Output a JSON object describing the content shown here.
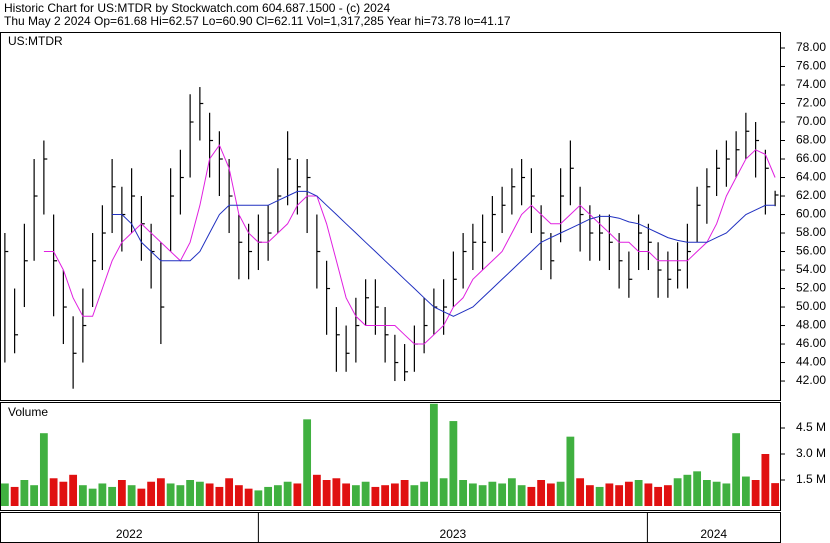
{
  "header": {
    "line1": "Historic Chart for US:MTDR by Stockwatch.com 604.687.1500 - (c) 2024",
    "line2": "Thu May  2 2024  Op=61.68  Hi=62.57  Lo=60.90  Cl=62.11  Vol=1,317,285  Year hi=73.78  lo=41.17"
  },
  "x_axis": {
    "xlim": [
      -0.5,
      79.5
    ],
    "periods": [
      {
        "label": "2022",
        "start": -0.5,
        "end": 26.0
      },
      {
        "label": "2023",
        "start": 26.0,
        "end": 65.9
      },
      {
        "label": "2024",
        "start": 65.9,
        "end": 79.5
      }
    ]
  },
  "chart_data": [
    {
      "type": "ohlc",
      "title": "US:MTDR",
      "color": "#000000",
      "ylim": [
        39.95,
        79.73
      ],
      "yticks": [
        {
          "value": 42,
          "label": "42.00"
        },
        {
          "value": 44,
          "label": "44.00"
        },
        {
          "value": 46,
          "label": "46.00"
        },
        {
          "value": 48,
          "label": "48.00"
        },
        {
          "value": 50,
          "label": "50.00"
        },
        {
          "value": 52,
          "label": "52.00"
        },
        {
          "value": 54,
          "label": "54.00"
        },
        {
          "value": 56,
          "label": "56.00"
        },
        {
          "value": 58,
          "label": "58.00"
        },
        {
          "value": 60,
          "label": "60.00"
        },
        {
          "value": 62,
          "label": "62.00"
        },
        {
          "value": 64,
          "label": "64.00"
        },
        {
          "value": 66,
          "label": "66.00"
        },
        {
          "value": 68,
          "label": "68.00"
        },
        {
          "value": 70,
          "label": "70.00"
        },
        {
          "value": 72,
          "label": "72.00"
        },
        {
          "value": 74,
          "label": "74.00"
        },
        {
          "value": 76,
          "label": "76.00"
        },
        {
          "value": 78,
          "label": "78.00"
        }
      ],
      "high": [
        58,
        52,
        59,
        66,
        68,
        60,
        54,
        49,
        52,
        58,
        61,
        66,
        63,
        65,
        62,
        59,
        57,
        65,
        67,
        73,
        73.78,
        71,
        69,
        66,
        60,
        59,
        60,
        61,
        65,
        69,
        66,
        66,
        60,
        55,
        50,
        48,
        51,
        53,
        53,
        50,
        47,
        46,
        48,
        51,
        52,
        53,
        56,
        58,
        59,
        60,
        62,
        63,
        65,
        66,
        65,
        61,
        58,
        65,
        68,
        63,
        61,
        60,
        60,
        58,
        56,
        60,
        59,
        57,
        56,
        57,
        59,
        63,
        65,
        67,
        68,
        69,
        71,
        70,
        67,
        62.57
      ],
      "low": [
        44,
        45,
        50,
        55,
        60,
        49,
        46,
        41.17,
        44,
        50,
        54,
        58,
        56,
        58,
        55,
        52,
        46,
        56,
        60,
        64,
        68,
        64,
        62,
        58,
        53,
        53,
        54,
        55,
        58,
        61,
        60,
        58,
        52,
        47,
        43,
        43,
        44,
        48,
        47,
        44,
        42,
        42,
        43,
        45,
        47,
        47,
        50,
        52,
        54,
        54,
        56,
        58,
        60,
        61,
        58,
        54,
        53,
        57,
        61,
        56,
        55,
        55,
        54,
        52,
        51,
        54,
        54,
        51,
        51,
        52,
        52,
        57,
        59,
        62,
        63,
        64,
        66,
        64,
        60,
        60.9
      ],
      "close": [
        56,
        47,
        55,
        62,
        66,
        55,
        50,
        45,
        48,
        55,
        58,
        63,
        60,
        62,
        59,
        56,
        50,
        62,
        64,
        70,
        72,
        68,
        66,
        62,
        57,
        56,
        57,
        58,
        62,
        66,
        63,
        64,
        56,
        52,
        47,
        45,
        48,
        51,
        50,
        47,
        44,
        43,
        46,
        48,
        50,
        50,
        53,
        56,
        57,
        57,
        60,
        61,
        63,
        64,
        62,
        58,
        55,
        62,
        65,
        60,
        58,
        58,
        57,
        55,
        53,
        58,
        57,
        54,
        53,
        54,
        56,
        61,
        63,
        65,
        66,
        67,
        69,
        68,
        65,
        62.11
      ],
      "ma_lines": [
        {
          "color": "#e020e0",
          "values": [
            null,
            null,
            null,
            null,
            56,
            56,
            54,
            51,
            49,
            49,
            52,
            55,
            57,
            58,
            59,
            58,
            57,
            56,
            55,
            57,
            61,
            66,
            67.5,
            65,
            60,
            58,
            57,
            57,
            58,
            59,
            61,
            62,
            62,
            59,
            55,
            51,
            49,
            48,
            48,
            48,
            48,
            47,
            46,
            46,
            47,
            48,
            50,
            51,
            53,
            54,
            55,
            56,
            58,
            60,
            61,
            60,
            59,
            59,
            60,
            61,
            60,
            59,
            58,
            57,
            57,
            56,
            56,
            55,
            55,
            55,
            55,
            56,
            57,
            59,
            62,
            64,
            66,
            67,
            66.5,
            64
          ]
        },
        {
          "color": "#2030c0",
          "values": [
            null,
            null,
            null,
            null,
            null,
            null,
            null,
            null,
            null,
            null,
            null,
            60,
            60,
            59,
            57,
            56,
            55,
            55,
            55,
            55,
            56,
            58,
            60,
            61,
            61,
            61,
            61,
            61,
            61.5,
            62,
            62.5,
            62.5,
            62,
            61,
            60,
            59,
            58,
            57,
            56,
            55,
            54,
            53,
            52,
            51,
            50,
            49.5,
            49,
            49.5,
            50,
            51,
            52,
            53,
            54,
            55,
            56,
            57,
            57.5,
            58,
            58.5,
            59,
            59.5,
            59.8,
            59.8,
            59.6,
            59.2,
            59,
            58.5,
            58,
            57.5,
            57.2,
            57,
            57,
            57,
            57.5,
            58,
            59,
            60,
            60.5,
            61,
            61
          ]
        }
      ]
    },
    {
      "type": "volume",
      "title": "Volume",
      "up_color": "#40b040",
      "down_color": "#e01010",
      "ylim": [
        0,
        6.0
      ],
      "yticks": [
        {
          "value": 1.5,
          "label": "1.5 M"
        },
        {
          "value": 3.0,
          "label": "3.0 M"
        },
        {
          "value": 4.5,
          "label": "4.5 M"
        }
      ],
      "values": [
        1.3,
        1.1,
        1.5,
        1.2,
        4.2,
        1.6,
        1.4,
        1.8,
        1.2,
        1.0,
        1.3,
        1.1,
        1.5,
        1.2,
        1.0,
        1.4,
        1.6,
        1.3,
        1.2,
        1.5,
        1.4,
        1.3,
        1.1,
        1.6,
        1.2,
        1.0,
        0.9,
        1.1,
        1.2,
        1.4,
        1.3,
        5.0,
        1.8,
        1.5,
        1.6,
        1.3,
        1.2,
        1.4,
        1.1,
        1.2,
        1.3,
        1.5,
        1.2,
        1.4,
        5.9,
        1.6,
        4.9,
        1.5,
        1.3,
        1.2,
        1.4,
        1.3,
        1.6,
        1.2,
        1.1,
        1.5,
        1.3,
        1.4,
        4.0,
        1.6,
        1.2,
        1.1,
        1.3,
        1.2,
        1.4,
        1.5,
        1.3,
        1.1,
        1.2,
        1.6,
        1.8,
        2.0,
        1.5,
        1.4,
        1.3,
        4.2,
        1.7,
        1.5,
        3.0,
        1.32
      ]
    }
  ]
}
